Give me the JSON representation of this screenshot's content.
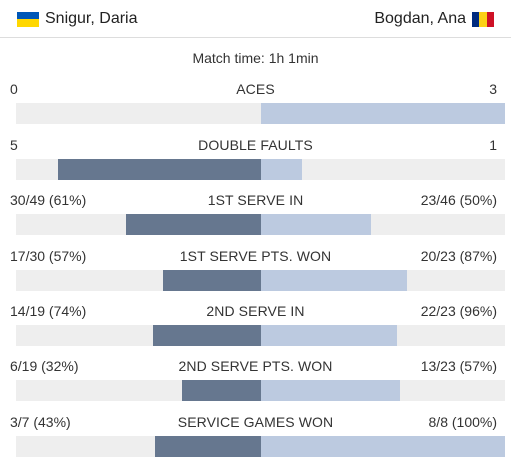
{
  "players": {
    "left": {
      "name": "Snigur, Daria",
      "flag": "ukraine-flag-icon"
    },
    "right": {
      "name": "Bogdan, Ana",
      "flag": "romania-flag-icon"
    }
  },
  "match_time": "Match time: 1h 1min",
  "colors": {
    "left_bar": "#66778f",
    "right_bar": "#bccae0",
    "track": "#eeeeee"
  },
  "stats": [
    {
      "label": "ACES",
      "left": "0",
      "right": "3",
      "left_share": 0.0,
      "right_share": 1.0
    },
    {
      "label": "DOUBLE FAULTS",
      "left": "5",
      "right": "1",
      "left_share": 0.83,
      "right_share": 0.17
    },
    {
      "label": "1ST SERVE IN",
      "left": "30/49 (61%)",
      "right": "23/46 (50%)",
      "left_share": 0.55,
      "right_share": 0.45
    },
    {
      "label": "1ST SERVE PTS. WON",
      "left": "17/30 (57%)",
      "right": "20/23 (87%)",
      "left_share": 0.4,
      "right_share": 0.6
    },
    {
      "label": "2ND SERVE IN",
      "left": "14/19 (74%)",
      "right": "22/23 (96%)",
      "left_share": 0.44,
      "right_share": 0.56
    },
    {
      "label": "2ND SERVE PTS. WON",
      "left": "6/19 (32%)",
      "right": "13/23 (57%)",
      "left_share": 0.32,
      "right_share": 0.57
    },
    {
      "label": "SERVICE GAMES WON",
      "left": "3/7 (43%)",
      "right": "8/8 (100%)",
      "left_share": 0.43,
      "right_share": 1.0
    }
  ]
}
